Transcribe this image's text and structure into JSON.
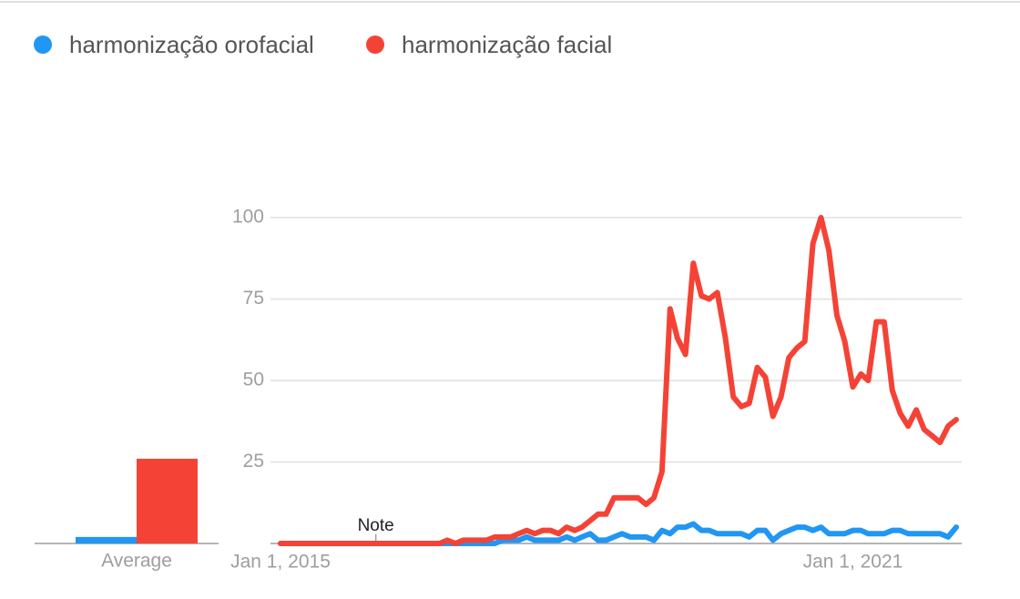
{
  "chart_data": {
    "type": "line",
    "x": [
      "2015-01-01",
      "2015-02-01",
      "2015-03-01",
      "2015-04-01",
      "2015-05-01",
      "2015-06-01",
      "2015-07-01",
      "2015-08-01",
      "2015-09-01",
      "2015-10-01",
      "2015-11-01",
      "2015-12-01",
      "2016-01-01",
      "2016-02-01",
      "2016-03-01",
      "2016-04-01",
      "2016-05-01",
      "2016-06-01",
      "2016-07-01",
      "2016-08-01",
      "2016-09-01",
      "2016-10-01",
      "2016-11-01",
      "2016-12-01",
      "2017-01-01",
      "2017-02-01",
      "2017-03-01",
      "2017-04-01",
      "2017-05-01",
      "2017-06-01",
      "2017-07-01",
      "2017-08-01",
      "2017-09-01",
      "2017-10-01",
      "2017-11-01",
      "2017-12-01",
      "2018-01-01",
      "2018-02-01",
      "2018-03-01",
      "2018-04-01",
      "2018-05-01",
      "2018-06-01",
      "2018-07-01",
      "2018-08-01",
      "2018-09-01",
      "2018-10-01",
      "2018-11-01",
      "2018-12-01",
      "2019-01-01",
      "2019-02-01",
      "2019-03-01",
      "2019-04-01",
      "2019-05-01",
      "2019-06-01",
      "2019-07-01",
      "2019-08-01",
      "2019-09-01",
      "2019-10-01",
      "2019-11-01",
      "2019-12-01",
      "2020-01-01",
      "2020-02-01",
      "2020-03-01",
      "2020-04-01",
      "2020-05-01",
      "2020-06-01",
      "2020-07-01",
      "2020-08-01",
      "2020-09-01",
      "2020-10-01",
      "2020-11-01",
      "2020-12-01",
      "2021-01-01",
      "2021-02-01",
      "2021-03-01",
      "2021-04-01",
      "2021-05-01",
      "2021-06-01",
      "2021-07-01",
      "2021-08-01",
      "2021-09-01",
      "2021-10-01",
      "2021-11-01",
      "2021-12-01",
      "2022-01-01",
      "2022-02-01"
    ],
    "series": [
      {
        "name": "harmonização orofacial",
        "color": "#2196f3",
        "values": [
          0,
          0,
          0,
          0,
          0,
          0,
          0,
          0,
          0,
          0,
          0,
          0,
          0,
          0,
          0,
          0,
          0,
          0,
          0,
          0,
          0,
          0,
          0,
          0,
          0,
          0,
          0,
          0,
          1,
          1,
          1,
          2,
          1,
          1,
          1,
          1,
          2,
          1,
          2,
          3,
          1,
          1,
          2,
          3,
          2,
          2,
          2,
          1,
          4,
          3,
          5,
          5,
          6,
          4,
          4,
          3,
          3,
          3,
          3,
          2,
          4,
          4,
          1,
          3,
          4,
          5,
          5,
          4,
          5,
          3,
          3,
          3,
          4,
          4,
          3,
          3,
          3,
          4,
          4,
          3,
          3,
          3,
          3,
          3,
          2,
          5
        ]
      },
      {
        "name": "harmonização facial",
        "color": "#f44336",
        "values": [
          0,
          0,
          0,
          0,
          0,
          0,
          0,
          0,
          0,
          0,
          0,
          0,
          0,
          0,
          0,
          0,
          0,
          0,
          0,
          0,
          0,
          1,
          0,
          1,
          1,
          1,
          1,
          2,
          2,
          2,
          3,
          4,
          3,
          4,
          4,
          3,
          5,
          4,
          5,
          7,
          9,
          9,
          14,
          14,
          14,
          14,
          12,
          14,
          22,
          72,
          63,
          58,
          86,
          76,
          75,
          77,
          63,
          45,
          42,
          43,
          54,
          51,
          39,
          45,
          57,
          60,
          62,
          92,
          100,
          90,
          70,
          62,
          48,
          52,
          50,
          68,
          68,
          47,
          40,
          36,
          41,
          35,
          33,
          31,
          36,
          38
        ]
      }
    ],
    "averages": {
      "label": "Average",
      "values": [
        2,
        26
      ]
    },
    "xlim": [
      "2015-01-01",
      "2022-02-01"
    ],
    "xticks": [
      {
        "value": "2015-01-01",
        "label": "Jan 1, 2015"
      },
      {
        "value": "2021-01-01",
        "label": "Jan 1, 2021"
      }
    ],
    "ylim": [
      0,
      100
    ],
    "yticks": [
      25,
      50,
      75,
      100
    ],
    "grid": true,
    "annotations": [
      {
        "text": "Note",
        "x": "2016-01-01"
      }
    ]
  }
}
